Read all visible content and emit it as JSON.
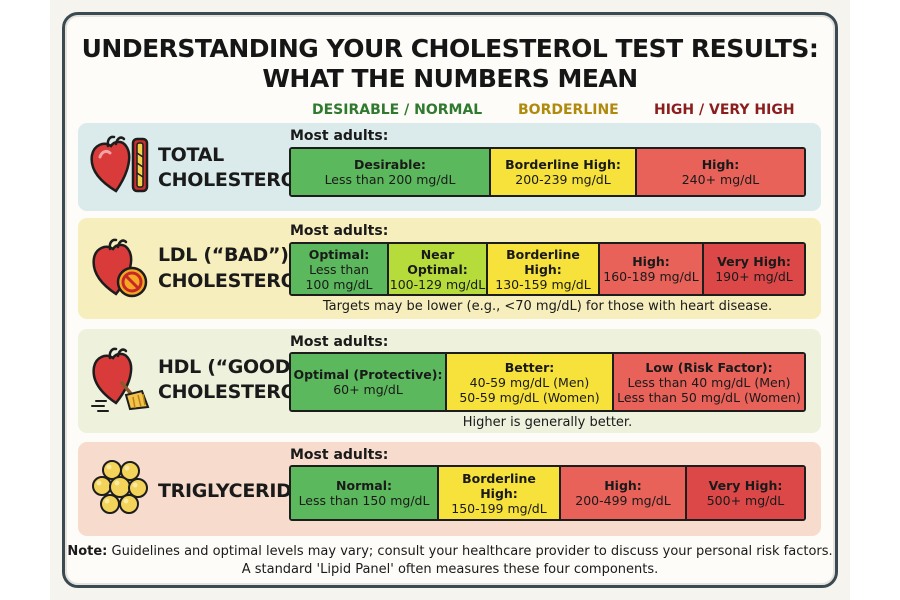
{
  "title": {
    "line1": "UNDERSTANDING YOUR CHOLESTEROL TEST RESULTS:",
    "line2": "WHAT THE NUMBERS MEAN"
  },
  "columns": {
    "desirable": "DESIRABLE / NORMAL",
    "borderline": "BORDERLINE",
    "high": "HIGH / VERY HIGH"
  },
  "colors": {
    "green": "#5cb85c",
    "light_green": "#b6dc3c",
    "yellow": "#f7e23c",
    "red": "#e8625a",
    "dark_red": "#dc4848"
  },
  "sections": {
    "total": {
      "name_line1": "TOTAL",
      "name_line2": "CHOLESTEROL",
      "icon": "heart-artery-icon",
      "most_adults": "Most adults:",
      "segments": [
        {
          "title": "Desirable:",
          "lines": [
            "Less than 200 mg/dL"
          ],
          "color": "green"
        },
        {
          "title": "Borderline High:",
          "lines": [
            "200-239 mg/dL"
          ],
          "color": "yellow"
        },
        {
          "title": "High:",
          "lines": [
            "240+ mg/dL"
          ],
          "color": "red"
        }
      ]
    },
    "ldl": {
      "name_line1": "LDL (“BAD”)",
      "name_line2": "CHOLESTEROL",
      "icon": "heart-prohibited-icon",
      "most_adults": "Most adults:",
      "segments": [
        {
          "title": "Optimal:",
          "lines": [
            "Less than",
            "100 mg/dL"
          ],
          "color": "green"
        },
        {
          "title": "Near Optimal:",
          "lines": [
            "100-129 mg/dL"
          ],
          "color": "light_green"
        },
        {
          "title": "Borderline High:",
          "lines": [
            "130-159 mg/dL"
          ],
          "color": "yellow"
        },
        {
          "title": "High:",
          "lines": [
            "160-189 mg/dL"
          ],
          "color": "red"
        },
        {
          "title": "Very High:",
          "lines": [
            "190+ mg/dL"
          ],
          "color": "dark_red"
        }
      ],
      "note": "Targets may be lower (e.g., <70 mg/dL) for those with heart disease."
    },
    "hdl": {
      "name_line1": "HDL (“GOOD”)",
      "name_line2": "CHOLESTEROL",
      "icon": "heart-broom-icon",
      "most_adults": "Most adults:",
      "segments": [
        {
          "title": "Optimal (Protective):",
          "lines": [
            "60+ mg/dL"
          ],
          "color": "green"
        },
        {
          "title": "Better:",
          "lines": [
            "40-59 mg/dL (Men)",
            "50-59 mg/dL (Women)"
          ],
          "color": "yellow"
        },
        {
          "title": "Low (Risk Factor):",
          "lines": [
            "Less than 40 mg/dL (Men)",
            "Less than 50 mg/dL (Women)"
          ],
          "color": "red"
        }
      ],
      "note": "Higher is generally better."
    },
    "tri": {
      "name_line1": "TRIGLYCERIDES",
      "icon": "fat-droplets-icon",
      "most_adults": "Most adults:",
      "segments": [
        {
          "title": "Normal:",
          "lines": [
            "Less than 150 mg/dL"
          ],
          "color": "green"
        },
        {
          "title": "Borderline",
          "title2": "High:",
          "lines": [
            "150-199 mg/dL"
          ],
          "color": "yellow"
        },
        {
          "title": "High:",
          "lines": [
            "200-499 mg/dL"
          ],
          "color": "red"
        },
        {
          "title": "Very High:",
          "lines": [
            "500+ mg/dL"
          ],
          "color": "dark_red"
        }
      ]
    }
  },
  "footer": {
    "note_label": "Note:",
    "line1": "Guidelines and optimal levels may vary; consult your healthcare provider to discuss your personal risk factors.",
    "line2": "A standard 'Lipid Panel' often measures these four components."
  }
}
